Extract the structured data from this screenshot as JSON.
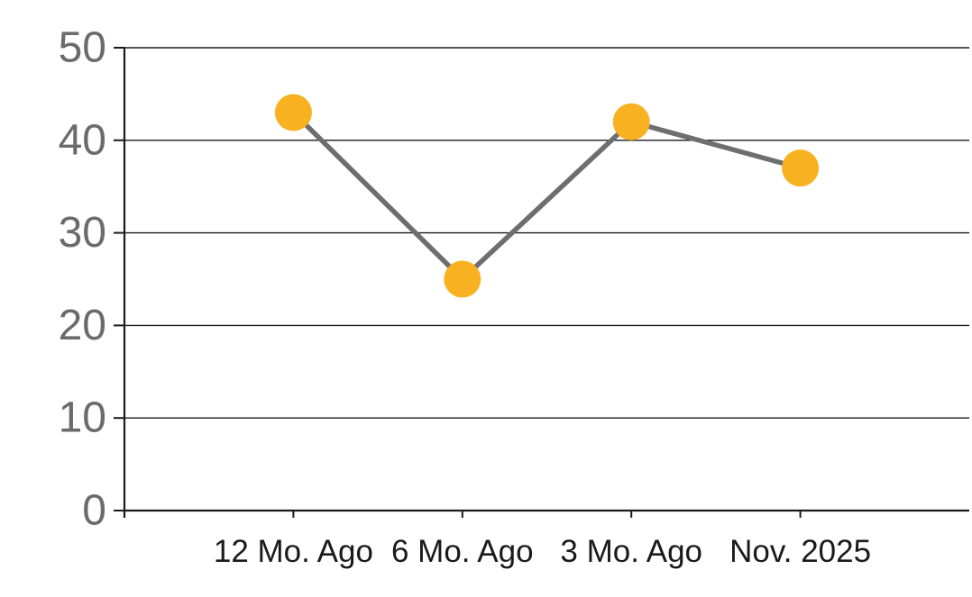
{
  "colors": {
    "background": "#ffffff",
    "axis": "#1a1a1a",
    "gridline": "#1a1a1a",
    "series_line": "#6e6e6e",
    "marker_fill": "#f8b120",
    "y_tick_label": "#6b6b6b",
    "x_tick_label": "#1a1a1a"
  },
  "chart_data": {
    "type": "line",
    "categories": [
      "12 Mo. Ago",
      "6 Mo. Ago",
      "3 Mo. Ago",
      "Nov. 2025"
    ],
    "values": [
      43,
      25,
      42,
      37
    ],
    "title": "",
    "xlabel": "",
    "ylabel": "",
    "ylim": [
      0,
      50
    ],
    "ytick_interval": 10,
    "ytick_labels": [
      "0",
      "10",
      "20",
      "30",
      "40",
      "50"
    ],
    "grid": true,
    "legend_position": "none",
    "marker_style": "circle"
  }
}
